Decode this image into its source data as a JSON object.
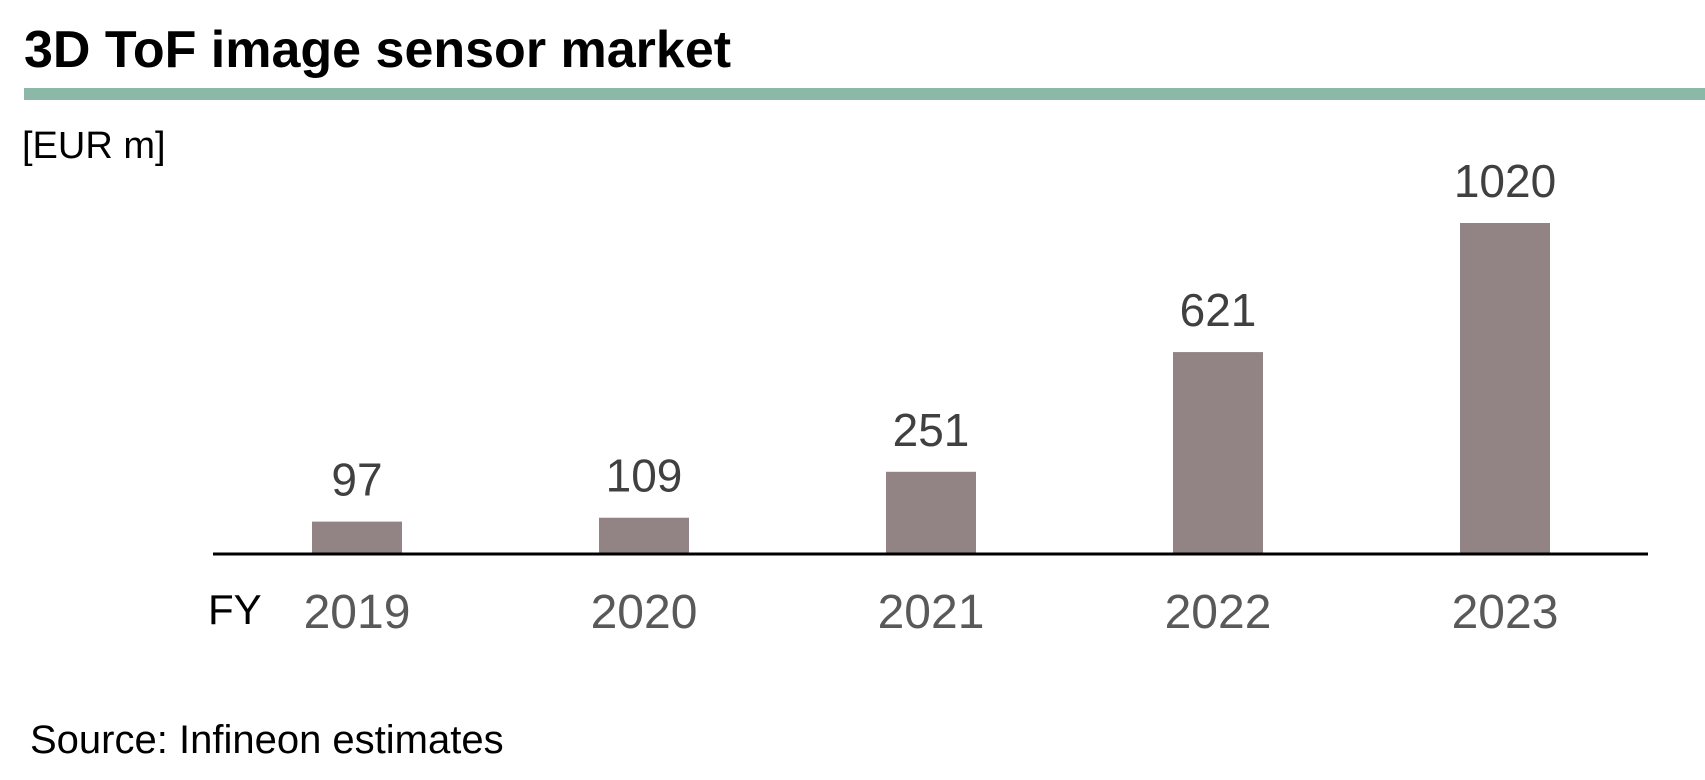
{
  "header": {
    "title": "3D ToF image sensor market",
    "unit_label": "[EUR m]"
  },
  "chart_data": {
    "type": "bar",
    "title": "3D ToF image sensor market",
    "ylabel": "[EUR m]",
    "xlabel": "FY",
    "categories": [
      "2019",
      "2020",
      "2021",
      "2022",
      "2023"
    ],
    "values": [
      97,
      109,
      251,
      621,
      1020
    ],
    "ylim": [
      0,
      1020
    ],
    "grid": false,
    "legend": "none"
  },
  "footer": {
    "source": "Source: Infineon estimates"
  },
  "colors": {
    "bar": "#928384",
    "title_rule": "#8cb8a8",
    "axis": "#000000",
    "value_label": "#404040",
    "tick_label": "#595959"
  }
}
